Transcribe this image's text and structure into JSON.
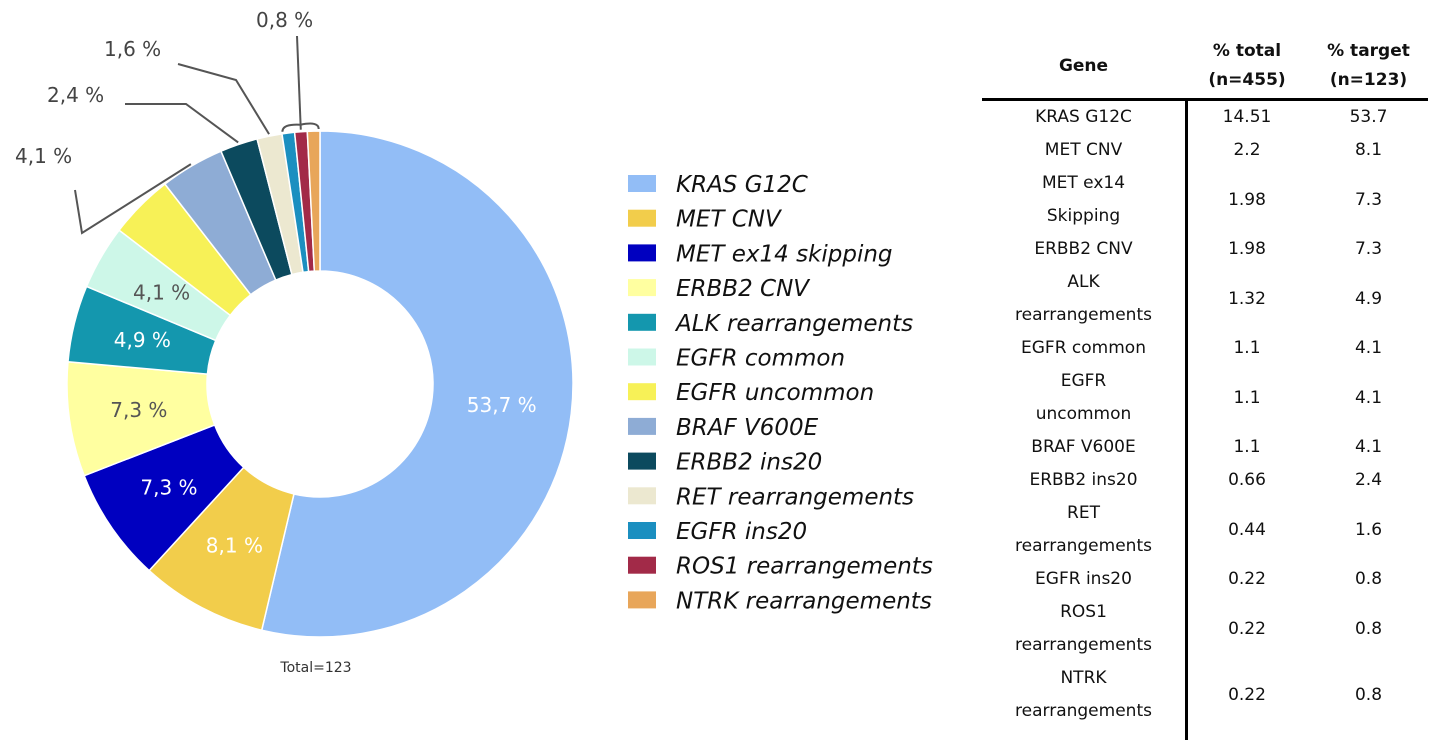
{
  "chart_data": {
    "type": "pie",
    "subtype": "donut",
    "footnote": "Total=123",
    "legend_position": "right",
    "slices": [
      {
        "name": "KRAS G12C",
        "value": 53.7,
        "label": "53,7 %",
        "color": "#92BDF6",
        "label_color": "#ffffff"
      },
      {
        "name": "MET CNV",
        "value": 8.1,
        "label": "8,1 %",
        "color": "#F2CD4B",
        "label_color": "#ffffff"
      },
      {
        "name": "MET ex14 skipping",
        "value": 7.3,
        "label": "7,3 %",
        "color": "#0000C0",
        "label_color": "#ffffff"
      },
      {
        "name": "ERBB2 CNV",
        "value": 7.3,
        "label": "7,3 %",
        "color": "#FFFFA0",
        "label_color": "#555555"
      },
      {
        "name": "ALK rearrangements",
        "value": 4.9,
        "label": "4,9 %",
        "color": "#1497AE",
        "label_color": "#ffffff"
      },
      {
        "name": "EGFR common",
        "value": 4.1,
        "label": "4,1 %",
        "color": "#CDF7E8",
        "label_color": "#555555"
      },
      {
        "name": "EGFR uncommon",
        "value": 4.1,
        "label": "",
        "color": "#F7F157",
        "label_color": "#555555"
      },
      {
        "name": "BRAF V600E",
        "value": 4.1,
        "label": "",
        "color": "#8EACD5",
        "label_color": "#555555"
      },
      {
        "name": "ERBB2 ins20",
        "value": 2.4,
        "label": "",
        "color": "#0C4A5E",
        "label_color": "#555555"
      },
      {
        "name": "RET rearrangements",
        "value": 1.6,
        "label": "",
        "color": "#ECE8D0",
        "label_color": "#555555"
      },
      {
        "name": "EGFR ins20",
        "value": 0.8,
        "label": "",
        "color": "#1B8FC0",
        "label_color": "#555555"
      },
      {
        "name": "ROS1 rearrangements",
        "value": 0.8,
        "label": "",
        "color": "#A22A48",
        "label_color": "#555555"
      },
      {
        "name": "NTRK rearrangements",
        "value": 0.8,
        "label": "",
        "color": "#E8A65A",
        "label_color": "#555555"
      }
    ],
    "callouts": [
      "4,1 %",
      "2,4 %",
      "1,6 %",
      "0,8 %"
    ]
  },
  "table": {
    "headers": {
      "gene": "Gene",
      "total_line1": "% total",
      "total_line2": "(n=455)",
      "target_line1": "% target",
      "target_line2": "(n=123)"
    },
    "rows": [
      {
        "gene_lines": [
          "KRAS G12C"
        ],
        "total": "14.51",
        "target": "53.7"
      },
      {
        "gene_lines": [
          "MET CNV"
        ],
        "total": "2.2",
        "target": "8.1"
      },
      {
        "gene_lines": [
          "MET ex14",
          "Skipping"
        ],
        "total": "1.98",
        "target": "7.3"
      },
      {
        "gene_lines": [
          "ERBB2 CNV"
        ],
        "total": "1.98",
        "target": "7.3"
      },
      {
        "gene_lines": [
          "ALK",
          "rearrangements"
        ],
        "total": "1.32",
        "target": "4.9"
      },
      {
        "gene_lines": [
          "EGFR common"
        ],
        "total": "1.1",
        "target": "4.1"
      },
      {
        "gene_lines": [
          "EGFR",
          "uncommon"
        ],
        "total": "1.1",
        "target": "4.1"
      },
      {
        "gene_lines": [
          "BRAF V600E"
        ],
        "total": "1.1",
        "target": "4.1"
      },
      {
        "gene_lines": [
          "ERBB2 ins20"
        ],
        "total": "0.66",
        "target": "2.4"
      },
      {
        "gene_lines": [
          "RET",
          "rearrangements"
        ],
        "total": "0.44",
        "target": "1.6"
      },
      {
        "gene_lines": [
          "EGFR ins20"
        ],
        "total": "0.22",
        "target": "0.8"
      },
      {
        "gene_lines": [
          "ROS1",
          "rearrangements"
        ],
        "total": "0.22",
        "target": "0.8"
      },
      {
        "gene_lines": [
          "NTRK",
          "rearrangements"
        ],
        "total": "0.22",
        "target": "0.8"
      }
    ]
  }
}
